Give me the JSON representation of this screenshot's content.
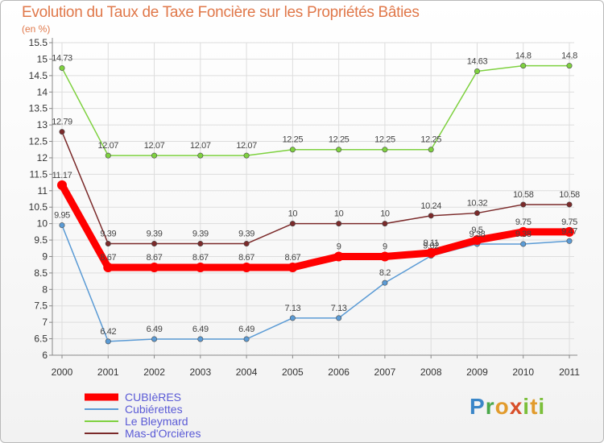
{
  "title": "Evolution du Taux de Taxe Foncière sur les Propriétés Bâties",
  "unit": "(en %)",
  "logo": {
    "p": "P",
    "r": "r",
    "o": "o",
    "x": "x",
    "i": "i",
    "t": "t",
    "i2": "i"
  },
  "chart_data": {
    "type": "line",
    "title": "Evolution du Taux de Taxe Foncière sur les Propriétés Bâties",
    "ylabel": "(en %)",
    "xlabel": "",
    "ylim": [
      6,
      15.5
    ],
    "yticks": [
      "6",
      "6.5",
      "7",
      "7.5",
      "8",
      "8.5",
      "9",
      "9.5",
      "10",
      "10.5",
      "11",
      "11.5",
      "12",
      "12.5",
      "13",
      "13.5",
      "14",
      "14.5",
      "15",
      "15.5"
    ],
    "categories": [
      "2000",
      "2001",
      "2002",
      "2003",
      "2004",
      "2005",
      "2006",
      "2007",
      "2008",
      "2009",
      "2010",
      "2011"
    ],
    "legend_position": "bottom-left",
    "series": [
      {
        "name": "CUBIèRES",
        "color": "#ff0000",
        "values": [
          11.17,
          8.67,
          8.67,
          8.67,
          8.67,
          8.67,
          9,
          9,
          9.11,
          9.5,
          9.75,
          9.75
        ],
        "labels": [
          "11.17",
          "8.67",
          "8.67",
          "8.67",
          "8.67",
          "8.67",
          "9",
          "9",
          "9.11",
          "9.5",
          "9.75",
          "9.75"
        ]
      },
      {
        "name": "Cubiérettes",
        "color": "#5b9bd5",
        "values": [
          9.95,
          6.42,
          6.49,
          6.49,
          6.49,
          7.13,
          7.13,
          8.2,
          9.02,
          9.38,
          9.38,
          9.47
        ],
        "labels": [
          "9.95",
          "6.42",
          "6.49",
          "6.49",
          "6.49",
          "7.13",
          "7.13",
          "8.2",
          "9.02",
          "9.38",
          "9.38",
          "9.47"
        ]
      },
      {
        "name": "Le Bleymard",
        "color": "#7ed13f",
        "values": [
          14.73,
          12.07,
          12.07,
          12.07,
          12.07,
          12.25,
          12.25,
          12.25,
          12.25,
          14.63,
          14.8,
          14.8
        ],
        "labels": [
          "14.73",
          "12.07",
          "12.07",
          "12.07",
          "12.07",
          "12.25",
          "12.25",
          "12.25",
          "12.25",
          "14.63",
          "14.8",
          "14.8"
        ]
      },
      {
        "name": "Mas-d'Orcières",
        "color": "#7b2a2a",
        "values": [
          12.79,
          9.39,
          9.39,
          9.39,
          9.39,
          10,
          10,
          10,
          10.24,
          10.32,
          10.58,
          10.58
        ],
        "labels": [
          "12.79",
          "9.39",
          "9.39",
          "9.39",
          "9.39",
          "10",
          "10",
          "10",
          "10.24",
          "10.32",
          "10.58",
          "10.58"
        ]
      }
    ]
  }
}
